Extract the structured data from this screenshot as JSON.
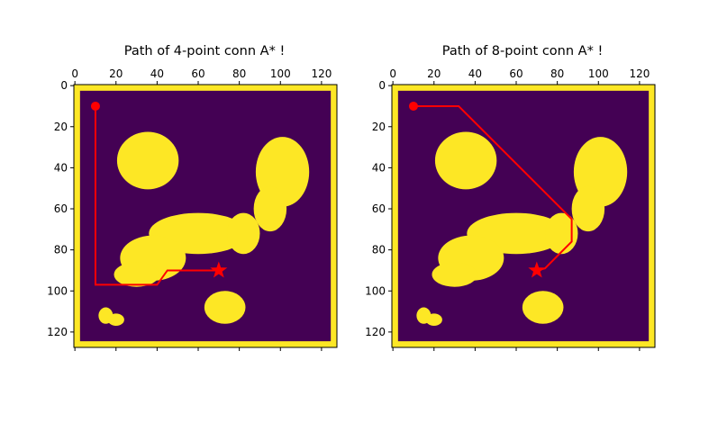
{
  "figure": {
    "background": "#ffffff"
  },
  "colors": {
    "free_space": "#440154",
    "obstacle": "#fde725",
    "path": "#ff0000",
    "axis": "#000000"
  },
  "chart_data": [
    {
      "type": "heatmap",
      "title": "Path of 4-point conn A* !",
      "grid_size": 128,
      "xlim": [
        0,
        127
      ],
      "ylim": [
        127,
        0
      ],
      "xticks": [
        "0",
        "20",
        "40",
        "60",
        "80",
        "100",
        "120"
      ],
      "yticks": [
        "0",
        "20",
        "40",
        "60",
        "80",
        "100",
        "120"
      ],
      "x_axis_position": "top",
      "grid": false,
      "start": [
        10,
        10
      ],
      "goal": [
        70,
        90
      ],
      "path": [
        [
          10,
          10
        ],
        [
          10,
          97
        ],
        [
          40,
          97
        ],
        [
          45,
          90
        ],
        [
          70,
          90
        ]
      ]
    },
    {
      "type": "heatmap",
      "title": "Path of 8-point conn A* !",
      "grid_size": 128,
      "xlim": [
        0,
        127
      ],
      "ylim": [
        127,
        0
      ],
      "xticks": [
        "0",
        "20",
        "40",
        "60",
        "80",
        "100",
        "120"
      ],
      "yticks": [
        "0",
        "20",
        "40",
        "60",
        "80",
        "100",
        "120"
      ],
      "x_axis_position": "top",
      "grid": false,
      "start": [
        10,
        10
      ],
      "goal": [
        70,
        90
      ],
      "path": [
        [
          10,
          10
        ],
        [
          32,
          10
        ],
        [
          87,
          65
        ],
        [
          87,
          76
        ],
        [
          74,
          89
        ],
        [
          70,
          90
        ]
      ]
    }
  ]
}
